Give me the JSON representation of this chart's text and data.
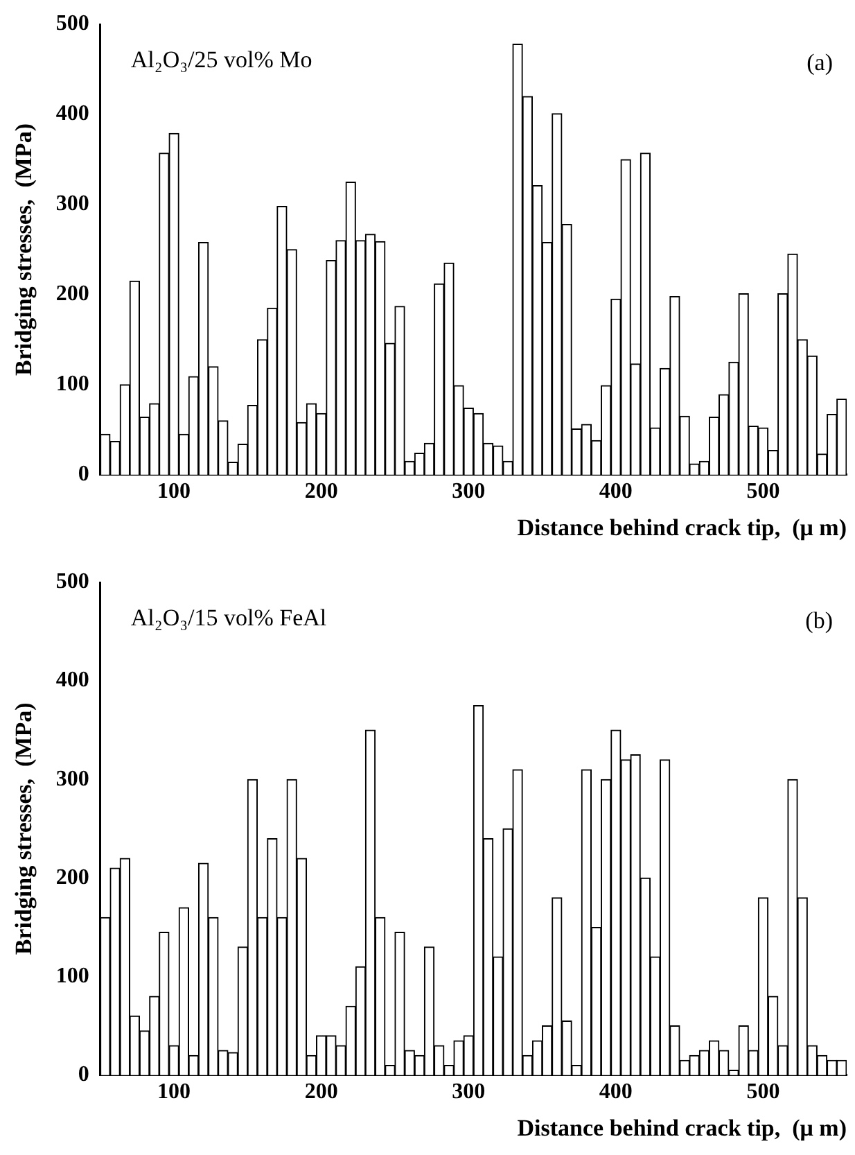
{
  "chart_data": [
    {
      "type": "bar",
      "xlabel": "Distance behind crack tip,  (μ m)",
      "ylabel": "Bridging stresses,  (MPa)",
      "annotations": [
        "Al₂O₃/25 vol% Mo",
        "(a)"
      ],
      "x": [
        53.3,
        60,
        66.7,
        73.3,
        80,
        86.7,
        93.3,
        100,
        106.7,
        113.3,
        120,
        126.7,
        133.3,
        140,
        146.7,
        153.3,
        160,
        166.7,
        173.3,
        180,
        186.7,
        193.3,
        200,
        206.7,
        213.3,
        220,
        226.7,
        233.3,
        240,
        246.7,
        253.3,
        260,
        266.7,
        273.3,
        280,
        286.7,
        293.3,
        300,
        306.7,
        313.3,
        320,
        326.7,
        333.3,
        340,
        346.7,
        353.3,
        360,
        366.7,
        373.3,
        380,
        386.7,
        393.3,
        400,
        406.7,
        413.3,
        420,
        426.7,
        433.3,
        440,
        446.7,
        453.3,
        460,
        466.7,
        473.3,
        480,
        486.7,
        493.3,
        500,
        506.7,
        513.3,
        520,
        526.7,
        533.3,
        540,
        546.7,
        553.3
      ],
      "values": [
        45,
        37,
        100,
        215,
        64,
        79,
        357,
        379,
        45,
        109,
        258,
        120,
        60,
        14,
        34,
        77,
        150,
        185,
        298,
        250,
        58,
        79,
        68,
        238,
        260,
        325,
        260,
        267,
        259,
        146,
        187,
        15,
        24,
        35,
        212,
        235,
        99,
        74,
        68,
        35,
        32,
        15,
        478,
        420,
        321,
        258,
        401,
        278,
        51,
        56,
        38,
        99,
        195,
        350,
        123,
        357,
        52,
        118,
        198,
        65,
        12,
        15,
        64,
        89,
        125,
        201,
        54,
        52,
        27,
        201,
        245,
        150,
        132,
        23,
        67,
        84
      ],
      "color": "#ffffff",
      "xlim": [
        50,
        556.7
      ],
      "xticks": [
        100,
        200,
        300,
        400,
        500
      ],
      "ylim": [
        0,
        500
      ],
      "yticks": [
        0,
        100,
        200,
        300,
        400,
        500
      ],
      "grid": false,
      "legend": false
    },
    {
      "type": "bar",
      "xlabel": "Distance behind crack tip,  (μ m)",
      "ylabel": "Bridging stresses,  (MPa)",
      "annotations": [
        "Al₂O₃/15 vol% FeAl",
        "(b)"
      ],
      "x": [
        53.3,
        60,
        66.7,
        73.3,
        80,
        86.7,
        93.3,
        100,
        106.7,
        113.3,
        120,
        126.7,
        133.3,
        140,
        146.7,
        153.3,
        160,
        166.7,
        173.3,
        180,
        186.7,
        193.3,
        200,
        206.7,
        213.3,
        220,
        226.7,
        233.3,
        240,
        246.7,
        253.3,
        260,
        266.7,
        273.3,
        280,
        286.7,
        293.3,
        300,
        306.7,
        313.3,
        320,
        326.7,
        333.3,
        340,
        346.7,
        353.3,
        360,
        366.7,
        373.3,
        380,
        386.7,
        393.3,
        400,
        406.7,
        413.3,
        420,
        426.7,
        433.3,
        440,
        446.7,
        453.3,
        460,
        466.7,
        473.3,
        480,
        486.7,
        493.3,
        500,
        506.7,
        513.3,
        520,
        526.7,
        533.3,
        540,
        546.7,
        553.3
      ],
      "values": [
        160,
        210,
        220,
        60,
        45,
        80,
        145,
        30,
        170,
        20,
        215,
        160,
        25,
        23,
        130,
        300,
        160,
        240,
        160,
        300,
        220,
        20,
        40,
        40,
        30,
        70,
        110,
        350,
        160,
        10,
        145,
        25,
        20,
        130,
        30,
        10,
        35,
        40,
        375,
        240,
        120,
        250,
        310,
        20,
        35,
        50,
        180,
        55,
        10,
        310,
        150,
        300,
        350,
        320,
        325,
        200,
        120,
        320,
        50,
        15,
        20,
        25,
        35,
        25,
        5,
        50,
        25,
        180,
        80,
        30,
        300,
        180,
        30,
        20,
        15,
        15
      ],
      "color": "#ffffff",
      "xlim": [
        50,
        556.7
      ],
      "xticks": [
        100,
        200,
        300,
        400,
        500
      ],
      "ylim": [
        0,
        500
      ],
      "yticks": [
        0,
        100,
        200,
        300,
        400,
        500
      ],
      "grid": false,
      "legend": false
    }
  ]
}
